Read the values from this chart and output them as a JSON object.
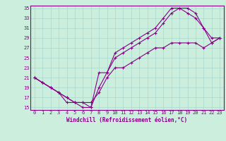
{
  "xlabel": "Windchill (Refroidissement éolien,°C)",
  "bg_color": "#cceedd",
  "line_color": "#880088",
  "xlim": [
    -0.5,
    23.5
  ],
  "ylim": [
    14.5,
    35.5
  ],
  "yticks": [
    15,
    17,
    19,
    21,
    23,
    25,
    27,
    29,
    31,
    33,
    35
  ],
  "xticks": [
    0,
    1,
    2,
    3,
    4,
    5,
    6,
    7,
    8,
    9,
    10,
    11,
    12,
    13,
    14,
    15,
    16,
    17,
    18,
    19,
    20,
    21,
    22,
    23
  ],
  "line1_x": [
    0,
    1,
    2,
    3,
    4,
    5,
    6,
    7,
    8,
    9,
    10,
    11,
    12,
    13,
    14,
    15,
    16,
    17,
    18,
    19,
    20,
    21,
    22,
    23
  ],
  "line1_y": [
    21,
    20,
    19,
    18,
    16,
    16,
    15,
    15,
    22,
    22,
    26,
    27,
    28,
    29,
    30,
    31,
    33,
    35,
    35,
    35,
    34,
    31,
    29,
    29
  ],
  "line2_x": [
    0,
    1,
    2,
    3,
    4,
    5,
    6,
    7,
    8,
    9,
    10,
    11,
    12,
    13,
    14,
    15,
    16,
    17,
    18,
    19,
    20,
    21,
    22,
    23
  ],
  "line2_y": [
    21,
    20,
    19,
    18,
    17,
    16,
    16,
    15,
    19,
    22,
    25,
    26,
    27,
    28,
    29,
    30,
    32,
    34,
    35,
    34,
    33,
    31,
    28,
    29
  ],
  "line3_x": [
    0,
    1,
    2,
    3,
    4,
    5,
    6,
    7,
    8,
    9,
    10,
    11,
    12,
    13,
    14,
    15,
    16,
    17,
    18,
    19,
    20,
    21,
    22,
    23
  ],
  "line3_y": [
    21,
    20,
    19,
    18,
    17,
    16,
    16,
    16,
    18,
    21,
    23,
    23,
    24,
    25,
    26,
    27,
    27,
    28,
    28,
    28,
    28,
    27,
    28,
    29
  ],
  "grid_color": "#aad8cc",
  "spine_color": "#880088",
  "tick_color": "#880088",
  "label_color": "#880088",
  "tick_fontsize": 5,
  "xlabel_fontsize": 5.5
}
